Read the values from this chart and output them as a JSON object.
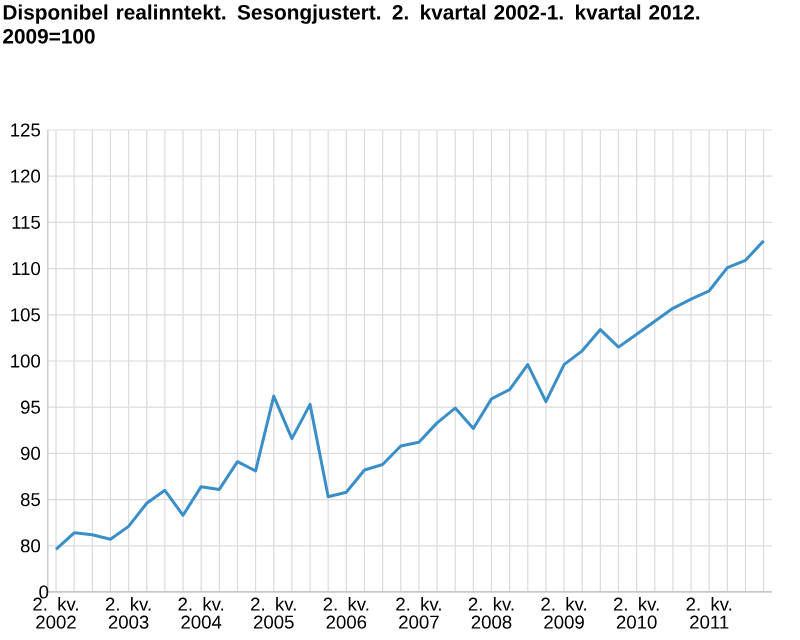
{
  "chart_data": {
    "type": "line",
    "title": "Disponibel realinntekt. Sesongjustert. 2. kvartal 2002-1. kvartal 2012. 2009=100",
    "categories": [
      "2. kv. 2002",
      null,
      null,
      null,
      "2. kv. 2003",
      null,
      null,
      null,
      "2. kv. 2004",
      null,
      null,
      null,
      "2. kv. 2005",
      null,
      null,
      null,
      "2. kv. 2006",
      null,
      null,
      null,
      "2. kv. 2007",
      null,
      null,
      null,
      "2. kv. 2008",
      null,
      null,
      null,
      "2. kv. 2009",
      null,
      null,
      null,
      "2. kv. 2010",
      null,
      null,
      null,
      "2. kv. 2011",
      null,
      null,
      null
    ],
    "series": [
      {
        "color": "#3a8fc9",
        "values": [
          79.6,
          81.4,
          81.2,
          80.7,
          82.1,
          84.6,
          86.0,
          83.3,
          86.4,
          86.1,
          89.1,
          88.1,
          96.2,
          91.6,
          95.3,
          85.3,
          85.8,
          88.2,
          88.8,
          90.8,
          91.2,
          93.3,
          94.9,
          92.7,
          95.9,
          96.9,
          99.6,
          95.6,
          99.6,
          101.1,
          103.4,
          101.5,
          102.9,
          104.3,
          105.7,
          106.7,
          107.6,
          110.1,
          110.9,
          113.0
        ]
      }
    ],
    "ylim": [
      75,
      125
    ],
    "annotations": [
      "0"
    ],
    "yticks": [
      {
        "value": 75,
        "label": null
      },
      80,
      85,
      90,
      95,
      100,
      105,
      110,
      115,
      120,
      125
    ],
    "grid": true
  }
}
